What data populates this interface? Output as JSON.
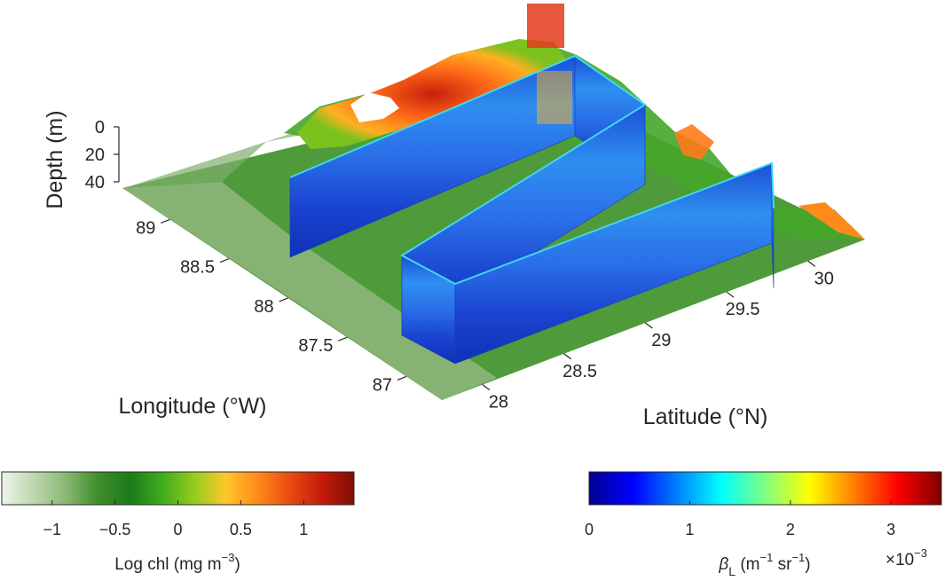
{
  "colors": {
    "map_scale": [
      "#eef5ea",
      "#bcd7ac",
      "#8ab873",
      "#3f8e2b",
      "#1d7a1a",
      "#3fab1d",
      "#94cc1f",
      "#ffc62a",
      "#ff8a1c",
      "#ea4a10",
      "#c51b0c",
      "#7e0e07"
    ],
    "lidar_scale": [
      "#00008f",
      "#0000ff",
      "#0080ff",
      "#00ffff",
      "#80ff80",
      "#ffff00",
      "#ff8000",
      "#ff0000",
      "#800000"
    ]
  },
  "chart_data": [
    {
      "type": "3d-surface-with-curtain",
      "axes": {
        "x": {
          "label": "Longitude (°W)",
          "ticks": [
            89,
            88.5,
            88,
            87.5,
            87
          ],
          "tick_labels": [
            "89",
            "88.5",
            "88",
            "87.5",
            "87"
          ],
          "range": [
            86.7,
            89.4
          ]
        },
        "y": {
          "label": "Latitude (°N)",
          "ticks": [
            28,
            28.5,
            29,
            29.5,
            30
          ],
          "tick_labels": [
            "28",
            "28.5",
            "29",
            "29.5",
            "30"
          ],
          "range": [
            27.75,
            30.35
          ]
        },
        "z": {
          "label": "Depth (m)",
          "ticks": [
            0,
            20,
            40
          ],
          "tick_labels": [
            "0",
            "20",
            "40"
          ],
          "range": [
            0,
            40
          ],
          "reversed": true
        }
      },
      "surface": {
        "variable": "Log chl (mg m^-3)",
        "range": [
          -1.4,
          1.4
        ],
        "description_values": {
          "offshore_southwest": -0.7,
          "mid_shelf": -0.3,
          "nearshore_north": 0.9
        }
      },
      "curtain_track": [
        {
          "lon": 88.7,
          "lat": 29.25
        },
        {
          "lon": 87.8,
          "lat": 29.92
        },
        {
          "lon": 88.75,
          "lat": 29.72
        },
        {
          "lon": 87.55,
          "lat": 28.7
        },
        {
          "lon": 87.75,
          "lat": 28.43
        },
        {
          "lon": 88.48,
          "lat": 29.55
        },
        {
          "lon": 88.6,
          "lat": 29.4
        }
      ],
      "curtain_range_scaled": [
        0,
        3.5
      ]
    },
    {
      "type": "colorbar",
      "label": "Log chl (mg m",
      "label_sup": "−3",
      "label_end": ")",
      "range": [
        -1.4,
        1.4
      ],
      "ticks": [
        -1,
        -0.5,
        0,
        0.5,
        1
      ],
      "tick_labels": [
        "−1",
        "−0.5",
        "0",
        "0.5",
        "1"
      ]
    },
    {
      "type": "colorbar",
      "label_symbol": "β",
      "label_sub": "L",
      "label_unit": " (m",
      "label_sup1": "−1",
      "label_mid": " sr",
      "label_sup2": "−1",
      "label_end": ")",
      "range": [
        0,
        3.5
      ],
      "ticks": [
        0,
        1,
        2,
        3
      ],
      "tick_labels": [
        "0",
        "1",
        "2",
        "3"
      ],
      "multiplier": "×10",
      "multiplier_exp": "−3"
    }
  ]
}
